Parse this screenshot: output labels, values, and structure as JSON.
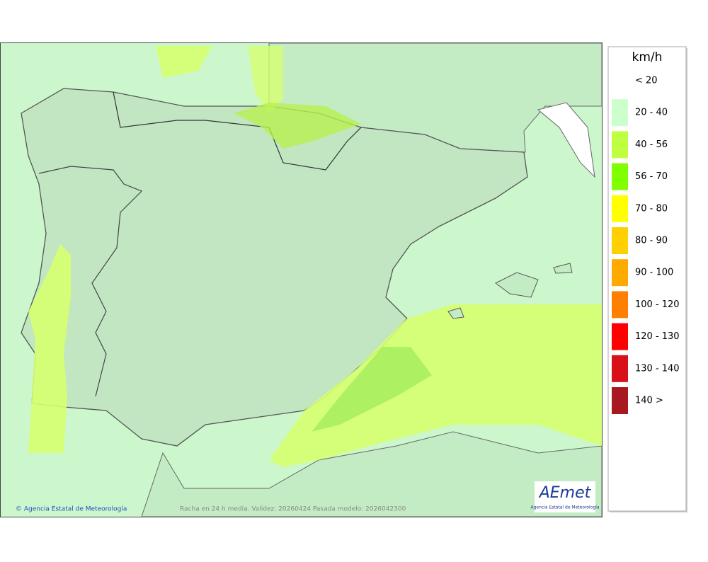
{
  "legend": {
    "title": "km/h",
    "items": [
      {
        "label": "< 20"
      },
      {
        "label": "20 - 40",
        "color": "#ccffcc"
      },
      {
        "label": "40 - 56",
        "color": "#bfff40"
      },
      {
        "label": "56 - 70",
        "color": "#80ff00"
      },
      {
        "label": "70 - 80",
        "color": "#ffff00"
      },
      {
        "label": "80 - 90",
        "color": "#ffd000"
      },
      {
        "label": "90 - 100",
        "color": "#ffaa00"
      },
      {
        "label": "100 - 120",
        "color": "#ff8000"
      },
      {
        "label": "120 - 130",
        "color": "#ff0000"
      },
      {
        "label": "130 - 140",
        "color": "#d81018"
      },
      {
        "label": "140 >",
        "color": "#a81820"
      }
    ]
  },
  "footer": {
    "credit": "© Agencia Estatal de Meteorología",
    "caption": "Racha en 24 h media. Validez: 20260424 Pasada modelo: 2026042300"
  },
  "logo": {
    "name": "AEmet",
    "subtitle": "Agencia Estatal de Meteorología"
  }
}
